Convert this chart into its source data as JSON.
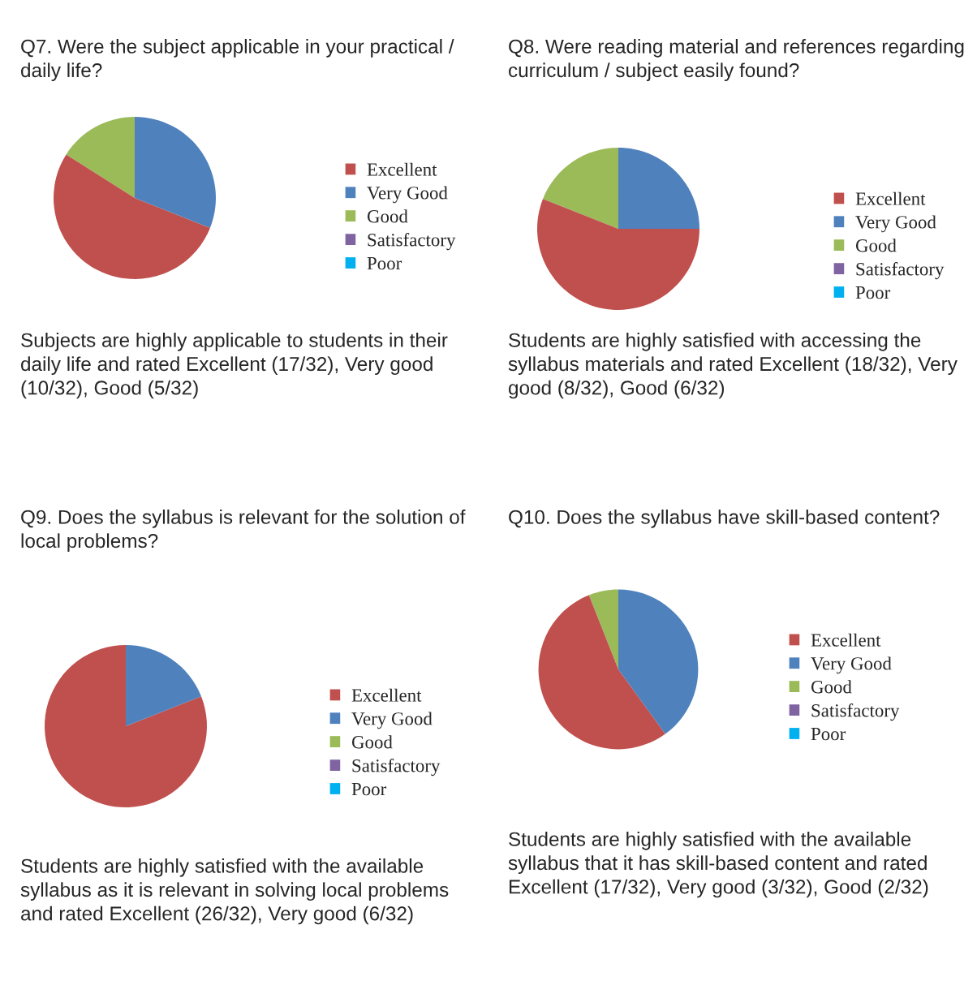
{
  "chart_data": [
    {
      "type": "pie",
      "title": "Q7. Were the subject applicable in your practical / daily life?",
      "categories": [
        "Excellent",
        "Very Good",
        "Good",
        "Satisfactory",
        "Poor"
      ],
      "values": [
        53,
        31,
        16,
        0,
        0
      ],
      "colors": [
        "#c0504d",
        "#4f81bd",
        "#9bbb59",
        "#8064a2",
        "#00b0f0"
      ],
      "legend": "right",
      "annotations": [
        "Subjects are highly applicable to students in their daily life and rated Excellent (17/32), Very good (10/32), Good (5/32)"
      ]
    },
    {
      "type": "pie",
      "title": "Q8. Were reading material and references regarding curriculum / subject easily found?",
      "categories": [
        "Excellent",
        "Very Good",
        "Good",
        "Satisfactory",
        "Poor"
      ],
      "values": [
        56,
        25,
        19,
        0,
        0
      ],
      "colors": [
        "#c0504d",
        "#4f81bd",
        "#9bbb59",
        "#8064a2",
        "#00b0f0"
      ],
      "legend": "right",
      "annotations": [
        "Students are highly satisfied with accessing the syllabus materials and rated Excellent (18/32), Very good (8/32), Good (6/32)"
      ]
    },
    {
      "type": "pie",
      "title": "Q9. Does the syllabus is relevant for the solution of local problems?",
      "categories": [
        "Excellent",
        "Very Good",
        "Good",
        "Satisfactory",
        "Poor"
      ],
      "values": [
        81,
        19,
        0,
        0,
        0
      ],
      "colors": [
        "#c0504d",
        "#4f81bd",
        "#9bbb59",
        "#8064a2",
        "#00b0f0"
      ],
      "legend": "right",
      "annotations": [
        "Students are highly satisfied with the available syllabus as it is relevant in solving local problems and rated Excellent (26/32), Very good (6/32)"
      ]
    },
    {
      "type": "pie",
      "title": "Q10. Does the syllabus have skill-based content?",
      "categories": [
        "Excellent",
        "Very Good",
        "Good",
        "Satisfactory",
        "Poor"
      ],
      "values": [
        54,
        40,
        6,
        0,
        0
      ],
      "colors": [
        "#c0504d",
        "#4f81bd",
        "#9bbb59",
        "#8064a2",
        "#00b0f0"
      ],
      "legend": "right",
      "annotations": [
        "Students are highly satisfied with the available syllabus that it has skill-based content and rated Excellent (17/32), Very good (3/32), Good (2/32)"
      ]
    }
  ]
}
